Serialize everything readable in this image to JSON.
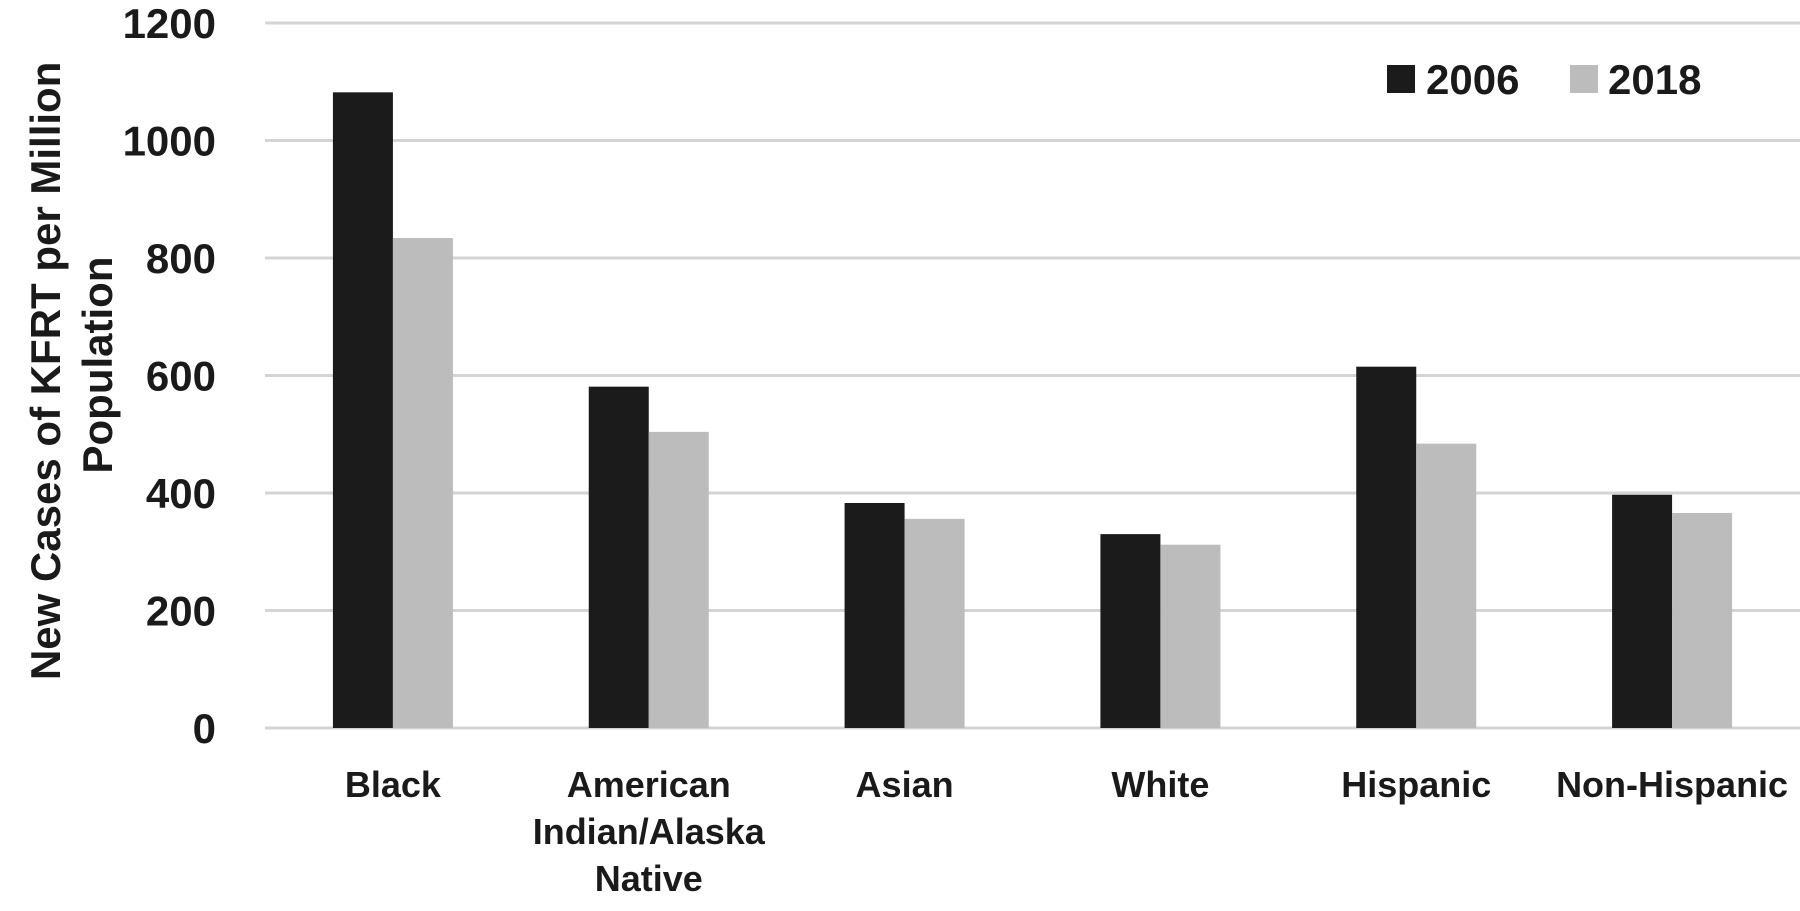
{
  "chart_data": {
    "type": "bar",
    "categories": [
      "Black",
      "American Indian/Alaska Native",
      "Asian",
      "White",
      "Hispanic",
      "Non-Hispanic"
    ],
    "category_label_lines": [
      [
        "Black"
      ],
      [
        "American",
        "Indian/Alaska",
        "Native"
      ],
      [
        "Asian"
      ],
      [
        "White"
      ],
      [
        "Hispanic"
      ],
      [
        "Non-Hispanic"
      ]
    ],
    "series": [
      {
        "name": "2006",
        "color": "#1b1b1b",
        "values": [
          1082,
          581,
          383,
          330,
          615,
          397
        ]
      },
      {
        "name": "2018",
        "color": "#bcbcbc",
        "values": [
          834,
          504,
          356,
          312,
          484,
          366
        ]
      }
    ],
    "ylabel_lines": [
      "New Cases of KFRT per Million",
      "Population"
    ],
    "xlabel": "",
    "ylim": [
      0,
      1200
    ],
    "yticks": [
      0,
      200,
      400,
      600,
      800,
      1000,
      1200
    ],
    "grid": true,
    "legend_position": "top-right",
    "gridline_color": "#d4d4d4"
  }
}
